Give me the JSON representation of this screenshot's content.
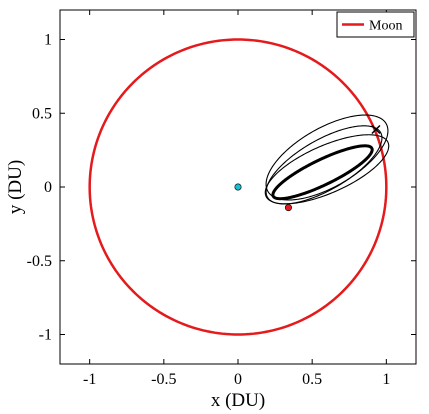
{
  "chart_data": {
    "type": "line",
    "title": "",
    "xlabel": "x (DU)",
    "ylabel": "y (DU)",
    "xlim": [
      -1.2,
      1.2
    ],
    "ylim": [
      -1.2,
      1.2
    ],
    "xticks": [
      -1,
      -0.5,
      0,
      0.5,
      1
    ],
    "xtick_labels": [
      "-1",
      "-0.5",
      "0",
      "0.5",
      "1"
    ],
    "yticks": [
      -1,
      -0.5,
      0,
      0.5,
      1
    ],
    "ytick_labels": [
      "-1",
      "-0.5",
      "0",
      "0.5",
      "1"
    ],
    "grid": false,
    "legend": {
      "placement": "top-right",
      "entries": [
        {
          "name": "Moon",
          "color": "#e41a1c"
        }
      ]
    },
    "series": [
      {
        "name": "Moon",
        "kind": "circle",
        "center": [
          0,
          0
        ],
        "radius": 1.0,
        "color": "#e41a1c"
      },
      {
        "kind": "ellipse",
        "center": [
          0.57,
          0.1
        ],
        "semi_major": 0.37,
        "semi_minor": 0.085,
        "rotation_deg": 26,
        "color": "#000000",
        "weight": "thick"
      },
      {
        "kind": "ellipse",
        "center": [
          0.58,
          0.15
        ],
        "semi_major": 0.44,
        "semi_minor": 0.17,
        "rotation_deg": 30,
        "color": "#000000",
        "weight": "thin"
      },
      {
        "kind": "ellipse",
        "center": [
          0.6,
          0.2
        ],
        "semi_major": 0.46,
        "semi_minor": 0.2,
        "rotation_deg": 30,
        "color": "#000000",
        "weight": "thin"
      },
      {
        "kind": "ellipse",
        "center": [
          0.6,
          0.12
        ],
        "semi_major": 0.45,
        "semi_minor": 0.16,
        "rotation_deg": 24,
        "color": "#000000",
        "weight": "thin"
      }
    ],
    "markers": [
      {
        "x": 0.0,
        "y": 0.0,
        "color": "#17becf",
        "shape": "circle"
      },
      {
        "x": 0.34,
        "y": -0.14,
        "color": "#e41a1c",
        "shape": "circle"
      },
      {
        "x": 0.93,
        "y": 0.39,
        "color": "#000000",
        "shape": "cross"
      }
    ],
    "colors": {
      "moon": "#e41a1c",
      "trajectory": "#000000",
      "start_marker": "#17becf",
      "end_marker": "#e41a1c",
      "axes": "#000000",
      "background": "#ffffff"
    }
  }
}
